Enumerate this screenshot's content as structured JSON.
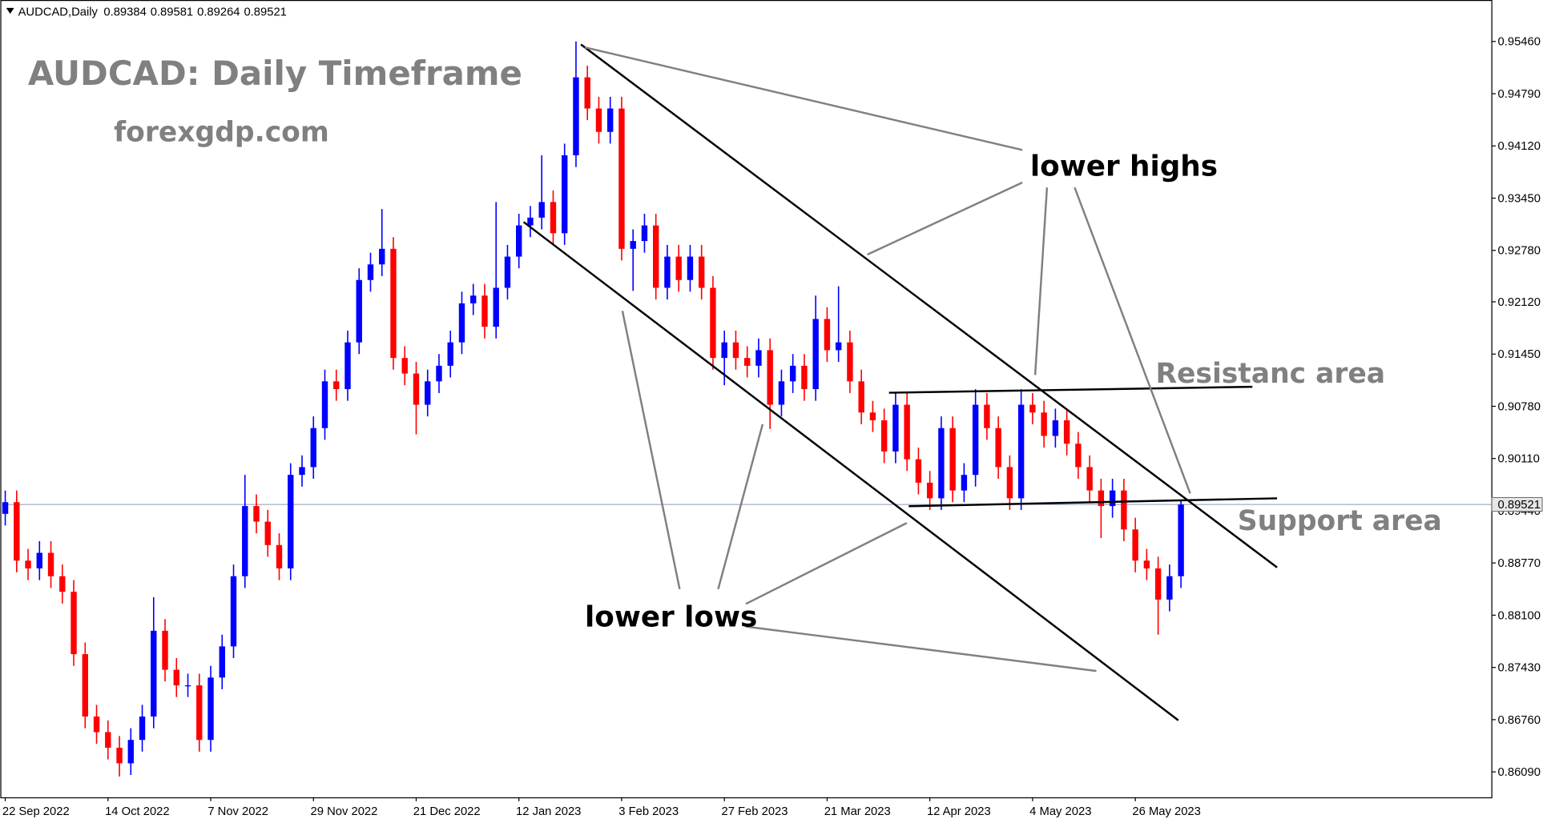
{
  "header": {
    "symbol": "AUDCAD,Daily",
    "ohlc": [
      0.89384,
      0.89581,
      0.89264,
      0.89521
    ]
  },
  "chart_data": {
    "type": "candlestick",
    "title": "AUDCAD: Daily Timeframe",
    "subtitle": "forexgdp.com",
    "annotations": [
      "lower highs",
      "lower lows",
      "Resistanc area",
      "Support area"
    ],
    "up_color": "#0000ff",
    "down_color": "#ff0000",
    "current_price": 0.89521,
    "ylim": [
      0.85764,
      0.95992
    ],
    "yticks": [
      {
        "value": 0.9546,
        "label": "0.95460"
      },
      {
        "value": 0.9479,
        "label": "0.94790"
      },
      {
        "value": 0.9412,
        "label": "0.94120"
      },
      {
        "value": 0.9345,
        "label": "0.93450"
      },
      {
        "value": 0.9278,
        "label": "0.92780"
      },
      {
        "value": 0.9212,
        "label": "0.92120"
      },
      {
        "value": 0.9145,
        "label": "0.91450"
      },
      {
        "value": 0.9078,
        "label": "0.90780"
      },
      {
        "value": 0.9011,
        "label": "0.90110"
      },
      {
        "value": 0.8944,
        "label": "0.89440"
      },
      {
        "value": 0.8877,
        "label": "0.88770"
      },
      {
        "value": 0.881,
        "label": "0.88100"
      },
      {
        "value": 0.8743,
        "label": "0.87430"
      },
      {
        "value": 0.8676,
        "label": "0.86760"
      },
      {
        "value": 0.8609,
        "label": "0.86090"
      }
    ],
    "categories": [
      "22 Sep 2022",
      null,
      null,
      null,
      null,
      null,
      null,
      null,
      null,
      "14 Oct 2022",
      null,
      null,
      null,
      null,
      null,
      null,
      null,
      null,
      "7 Nov 2022",
      null,
      null,
      null,
      null,
      null,
      null,
      null,
      null,
      "29 Nov 2022",
      null,
      null,
      null,
      null,
      null,
      null,
      null,
      null,
      "21 Dec 2022",
      null,
      null,
      null,
      null,
      null,
      null,
      null,
      null,
      "12 Jan 2023",
      null,
      null,
      null,
      null,
      null,
      null,
      null,
      null,
      "3 Feb 2023",
      null,
      null,
      null,
      null,
      null,
      null,
      null,
      null,
      "27 Feb 2023",
      null,
      null,
      null,
      null,
      null,
      null,
      null,
      null,
      "21 Mar 2023",
      null,
      null,
      null,
      null,
      null,
      null,
      null,
      null,
      "12 Apr 2023",
      null,
      null,
      null,
      null,
      null,
      null,
      null,
      null,
      "4 May 2023",
      null,
      null,
      null,
      null,
      null,
      null,
      null,
      null,
      "26 May 2023",
      null,
      null,
      null,
      null
    ],
    "open": [
      0.894,
      0.8955,
      0.888,
      0.887,
      0.889,
      0.886,
      0.884,
      0.876,
      0.868,
      0.866,
      0.864,
      0.862,
      0.865,
      0.868,
      0.879,
      0.874,
      0.872,
      0.872,
      0.865,
      0.873,
      0.877,
      0.886,
      0.895,
      0.893,
      0.89,
      0.887,
      0.899,
      0.9,
      0.905,
      0.911,
      0.91,
      0.916,
      0.924,
      0.926,
      0.928,
      0.914,
      0.912,
      0.908,
      0.911,
      0.913,
      0.916,
      0.921,
      0.922,
      0.918,
      0.923,
      0.927,
      0.931,
      0.932,
      0.934,
      0.93,
      0.94,
      0.95,
      0.946,
      0.943,
      0.946,
      0.928,
      0.929,
      0.931,
      0.923,
      0.927,
      0.924,
      0.927,
      0.923,
      0.914,
      0.916,
      0.914,
      0.913,
      0.915,
      0.908,
      0.911,
      0.913,
      0.91,
      0.919,
      0.915,
      0.916,
      0.911,
      0.907,
      0.906,
      0.902,
      0.908,
      0.901,
      0.898,
      0.896,
      0.905,
      0.897,
      0.899,
      0.908,
      0.905,
      0.9,
      0.896,
      0.908,
      0.907,
      0.904,
      0.906,
      0.903,
      0.9,
      0.897,
      0.895,
      0.897,
      0.892,
      0.888,
      0.887,
      0.883,
      0.886
    ],
    "high": [
      0.897,
      0.897,
      0.8895,
      0.8905,
      0.8905,
      0.8875,
      0.8855,
      0.8775,
      0.8695,
      0.8675,
      0.8655,
      0.8665,
      0.8695,
      0.8833,
      0.8805,
      0.8755,
      0.8735,
      0.8735,
      0.8745,
      0.8785,
      0.8875,
      0.899,
      0.8965,
      0.8945,
      0.8915,
      0.9005,
      0.9015,
      0.9065,
      0.9125,
      0.9125,
      0.9175,
      0.9255,
      0.9275,
      0.9331,
      0.9295,
      0.9155,
      0.9135,
      0.9125,
      0.9145,
      0.9175,
      0.9225,
      0.9235,
      0.9235,
      0.934,
      0.9285,
      0.9325,
      0.9335,
      0.94,
      0.9355,
      0.9415,
      0.9546,
      0.9515,
      0.9475,
      0.9475,
      0.9475,
      0.9305,
      0.9325,
      0.9325,
      0.9285,
      0.9285,
      0.9285,
      0.9285,
      0.9245,
      0.9175,
      0.9175,
      0.9155,
      0.9165,
      0.9165,
      0.9125,
      0.9145,
      0.9145,
      0.922,
      0.9205,
      0.9232,
      0.9175,
      0.9125,
      0.9085,
      0.9075,
      0.9095,
      0.9095,
      0.9025,
      0.8995,
      0.9065,
      0.9065,
      0.9005,
      0.91,
      0.9095,
      0.9065,
      0.9015,
      0.91,
      0.9095,
      0.9085,
      0.9075,
      0.9075,
      0.9045,
      0.9015,
      0.8985,
      0.8985,
      0.8985,
      0.8935,
      0.8895,
      0.8885,
      0.8875,
      0.8958
    ],
    "low": [
      0.8925,
      0.8865,
      0.8855,
      0.8855,
      0.8845,
      0.8825,
      0.8745,
      0.8665,
      0.8645,
      0.8625,
      0.8603,
      0.8605,
      0.8635,
      0.8665,
      0.8725,
      0.8705,
      0.8705,
      0.8635,
      0.8635,
      0.8715,
      0.8755,
      0.8845,
      0.8915,
      0.8885,
      0.8855,
      0.8855,
      0.8975,
      0.8985,
      0.9035,
      0.9085,
      0.9085,
      0.9145,
      0.9225,
      0.9245,
      0.9125,
      0.9105,
      0.9042,
      0.9065,
      0.9095,
      0.9115,
      0.9145,
      0.9195,
      0.9165,
      0.9165,
      0.9215,
      0.9255,
      0.9295,
      0.9305,
      0.9285,
      0.9285,
      0.9385,
      0.9445,
      0.9415,
      0.9415,
      0.9265,
      0.9226,
      0.9275,
      0.9215,
      0.9215,
      0.9225,
      0.9225,
      0.9215,
      0.9125,
      0.9105,
      0.9125,
      0.9115,
      0.9115,
      0.9049,
      0.9065,
      0.9095,
      0.9085,
      0.9085,
      0.9135,
      0.9135,
      0.9095,
      0.9055,
      0.9045,
      0.9005,
      0.9005,
      0.8995,
      0.8965,
      0.8945,
      0.8945,
      0.8955,
      0.8955,
      0.8975,
      0.9035,
      0.8985,
      0.8945,
      0.8945,
      0.9055,
      0.9025,
      0.9025,
      0.9015,
      0.8985,
      0.8955,
      0.8909,
      0.8935,
      0.8905,
      0.8865,
      0.8855,
      0.8785,
      0.8815,
      0.8845
    ],
    "close": [
      0.8955,
      0.888,
      0.887,
      0.889,
      0.886,
      0.884,
      0.876,
      0.868,
      0.866,
      0.864,
      0.862,
      0.865,
      0.868,
      0.879,
      0.874,
      0.872,
      0.872,
      0.865,
      0.873,
      0.877,
      0.886,
      0.895,
      0.893,
      0.89,
      0.887,
      0.899,
      0.9,
      0.905,
      0.911,
      0.91,
      0.916,
      0.924,
      0.926,
      0.928,
      0.914,
      0.912,
      0.908,
      0.911,
      0.913,
      0.916,
      0.921,
      0.922,
      0.918,
      0.923,
      0.927,
      0.931,
      0.932,
      0.934,
      0.93,
      0.94,
      0.95,
      0.946,
      0.943,
      0.946,
      0.928,
      0.929,
      0.931,
      0.923,
      0.927,
      0.924,
      0.927,
      0.923,
      0.914,
      0.916,
      0.914,
      0.913,
      0.915,
      0.908,
      0.911,
      0.913,
      0.91,
      0.919,
      0.915,
      0.916,
      0.911,
      0.907,
      0.906,
      0.902,
      0.908,
      0.901,
      0.898,
      0.896,
      0.905,
      0.897,
      0.899,
      0.908,
      0.905,
      0.9,
      0.896,
      0.908,
      0.907,
      0.904,
      0.906,
      0.903,
      0.9,
      0.897,
      0.895,
      0.897,
      0.892,
      0.888,
      0.887,
      0.883,
      0.886,
      0.8952
    ]
  }
}
